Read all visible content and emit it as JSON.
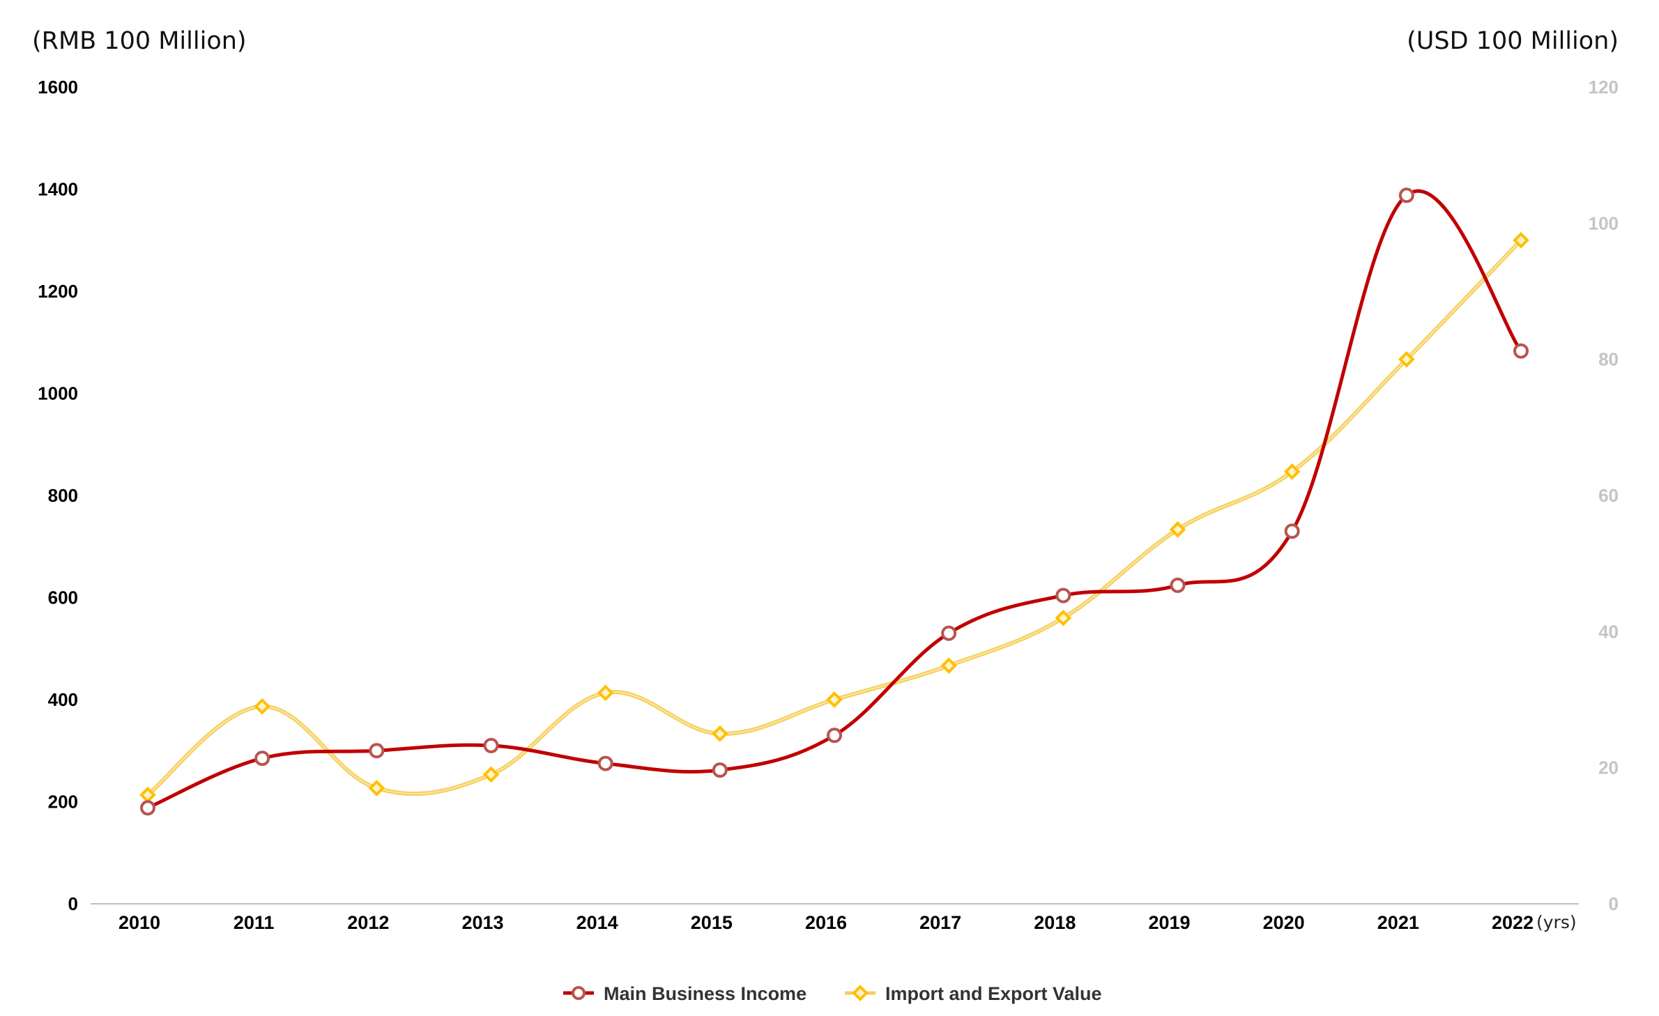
{
  "chart_data": {
    "type": "line",
    "title": "",
    "y_left_label": "(RMB 100 Million)",
    "y_right_label": "(USD 100 Million)",
    "x_unit_label": "(yrs)",
    "categories": [
      "2010",
      "2011",
      "2012",
      "2013",
      "2014",
      "2015",
      "2016",
      "2017",
      "2018",
      "2019",
      "2020",
      "2021",
      "2022"
    ],
    "y_left_ticks": [
      "0",
      "200",
      "400",
      "600",
      "800",
      "1000",
      "1200",
      "1400",
      "1600"
    ],
    "y_right_ticks": [
      "0",
      "20",
      "40",
      "60",
      "80",
      "100",
      "120"
    ],
    "y_left_range": [
      0,
      1600
    ],
    "y_right_range": [
      0,
      120
    ],
    "grid": false,
    "legend_position": "bottom-center",
    "series": [
      {
        "name": "Main Business Income",
        "axis": "left",
        "color": "#c00000",
        "marker": "circle",
        "values": [
          188,
          285,
          300,
          310,
          275,
          262,
          330,
          530,
          604,
          624,
          730,
          1388,
          1083
        ]
      },
      {
        "name": "Import and Export Value",
        "axis": "right",
        "color": "#ffc000",
        "marker": "diamond",
        "values": [
          16,
          29,
          17,
          19,
          31,
          25,
          30,
          35,
          42,
          55,
          63.5,
          80,
          97.5
        ]
      }
    ]
  }
}
